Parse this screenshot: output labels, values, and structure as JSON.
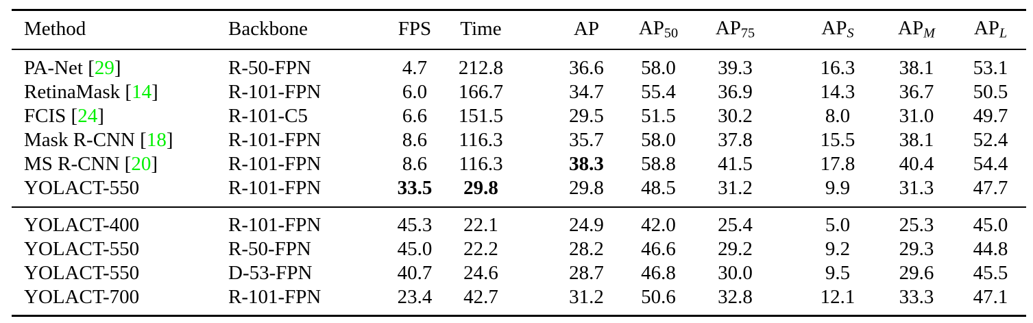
{
  "page": {
    "background": "#ffffff",
    "text_color": "#000000",
    "rule_color": "#000000"
  },
  "table": {
    "citation_color": "#00f000",
    "columns": [
      {
        "key": "method",
        "label": "Method",
        "align": "left"
      },
      {
        "key": "backbone",
        "label": "Backbone",
        "align": "left"
      },
      {
        "key": "fps",
        "label": "FPS",
        "align": "center"
      },
      {
        "key": "time",
        "label": "Time",
        "align": "center"
      },
      {
        "key": "ap",
        "label": "AP",
        "align": "center"
      },
      {
        "key": "ap50",
        "label": "AP",
        "sub": "50",
        "sub_italic": false,
        "align": "center"
      },
      {
        "key": "ap75",
        "label": "AP",
        "sub": "75",
        "sub_italic": false,
        "align": "center"
      },
      {
        "key": "aps",
        "label": "AP",
        "sub": "S",
        "sub_italic": true,
        "align": "center"
      },
      {
        "key": "apm",
        "label": "AP",
        "sub": "M",
        "sub_italic": true,
        "align": "center"
      },
      {
        "key": "apl",
        "label": "AP",
        "sub": "L",
        "sub_italic": true,
        "align": "center"
      }
    ],
    "sections": [
      {
        "rows": [
          {
            "method": "PA-Net",
            "cite": "29",
            "backbone": "R-50-FPN",
            "fps": "4.7",
            "time": "212.8",
            "ap": "36.6",
            "ap50": "58.0",
            "ap75": "39.3",
            "aps": "16.3",
            "apm": "38.1",
            "apl": "53.1",
            "bold": []
          },
          {
            "method": "RetinaMask",
            "cite": "14",
            "backbone": "R-101-FPN",
            "fps": "6.0",
            "time": "166.7",
            "ap": "34.7",
            "ap50": "55.4",
            "ap75": "36.9",
            "aps": "14.3",
            "apm": "36.7",
            "apl": "50.5",
            "bold": []
          },
          {
            "method": "FCIS",
            "cite": "24",
            "backbone": "R-101-C5",
            "fps": "6.6",
            "time": "151.5",
            "ap": "29.5",
            "ap50": "51.5",
            "ap75": "30.2",
            "aps": "8.0",
            "apm": "31.0",
            "apl": "49.7",
            "bold": []
          },
          {
            "method": "Mask R-CNN",
            "cite": "18",
            "backbone": "R-101-FPN",
            "fps": "8.6",
            "time": "116.3",
            "ap": "35.7",
            "ap50": "58.0",
            "ap75": "37.8",
            "aps": "15.5",
            "apm": "38.1",
            "apl": "52.4",
            "bold": []
          },
          {
            "method": "MS R-CNN",
            "cite": "20",
            "backbone": "R-101-FPN",
            "fps": "8.6",
            "time": "116.3",
            "ap": "38.3",
            "ap50": "58.8",
            "ap75": "41.5",
            "aps": "17.8",
            "apm": "40.4",
            "apl": "54.4",
            "bold": [
              "ap"
            ]
          },
          {
            "method": "YOLACT-550",
            "cite": null,
            "backbone": "R-101-FPN",
            "fps": "33.5",
            "time": "29.8",
            "ap": "29.8",
            "ap50": "48.5",
            "ap75": "31.2",
            "aps": "9.9",
            "apm": "31.3",
            "apl": "47.7",
            "bold": [
              "fps",
              "time"
            ]
          }
        ]
      },
      {
        "rows": [
          {
            "method": "YOLACT-400",
            "cite": null,
            "backbone": "R-101-FPN",
            "fps": "45.3",
            "time": "22.1",
            "ap": "24.9",
            "ap50": "42.0",
            "ap75": "25.4",
            "aps": "5.0",
            "apm": "25.3",
            "apl": "45.0",
            "bold": []
          },
          {
            "method": "YOLACT-550",
            "cite": null,
            "backbone": "R-50-FPN",
            "fps": "45.0",
            "time": "22.2",
            "ap": "28.2",
            "ap50": "46.6",
            "ap75": "29.2",
            "aps": "9.2",
            "apm": "29.3",
            "apl": "44.8",
            "bold": []
          },
          {
            "method": "YOLACT-550",
            "cite": null,
            "backbone": "D-53-FPN",
            "fps": "40.7",
            "time": "24.6",
            "ap": "28.7",
            "ap50": "46.8",
            "ap75": "30.0",
            "aps": "9.5",
            "apm": "29.6",
            "apl": "45.5",
            "bold": []
          },
          {
            "method": "YOLACT-700",
            "cite": null,
            "backbone": "R-101-FPN",
            "fps": "23.4",
            "time": "42.7",
            "ap": "31.2",
            "ap50": "50.6",
            "ap75": "32.8",
            "aps": "12.1",
            "apm": "33.3",
            "apl": "47.1",
            "bold": []
          }
        ]
      }
    ]
  }
}
